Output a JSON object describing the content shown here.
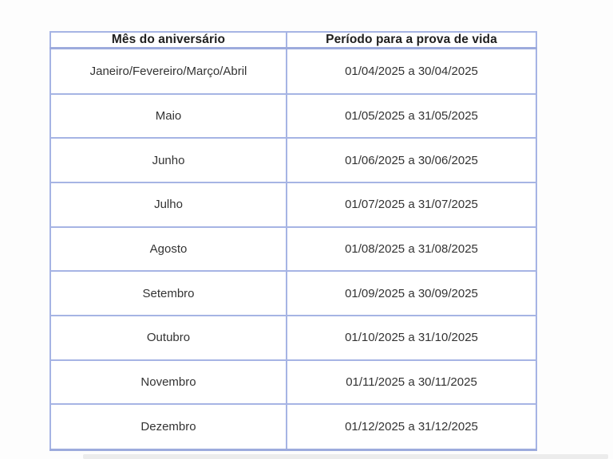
{
  "table": {
    "headers": [
      "Mês do aniversário",
      "Período para a prova de vida"
    ],
    "rows": [
      {
        "month": "Janeiro/Fevereiro/Março/Abril",
        "period": "01/04/2025 a 30/04/2025"
      },
      {
        "month": "Maio",
        "period": "01/05/2025 a 31/05/2025"
      },
      {
        "month": "Junho",
        "period": "01/06/2025 a 30/06/2025"
      },
      {
        "month": "Julho",
        "period": "01/07/2025 a 31/07/2025"
      },
      {
        "month": "Agosto",
        "period": "01/08/2025 a 31/08/2025"
      },
      {
        "month": "Setembro",
        "period": "01/09/2025 a 30/09/2025"
      },
      {
        "month": "Outubro",
        "period": "01/10/2025 a 31/10/2025"
      },
      {
        "month": "Novembro",
        "period": "01/11/2025 a 30/11/2025"
      },
      {
        "month": "Dezembro",
        "period": "01/12/2025 a 31/12/2025"
      }
    ],
    "colors": {
      "border": "#a6b4e4",
      "border_bottom": "#9dabdd",
      "header_text": "#1e1e1e",
      "body_text": "#333333",
      "cell_background": "#ffffff",
      "page_background": "#fdfdfd"
    }
  }
}
